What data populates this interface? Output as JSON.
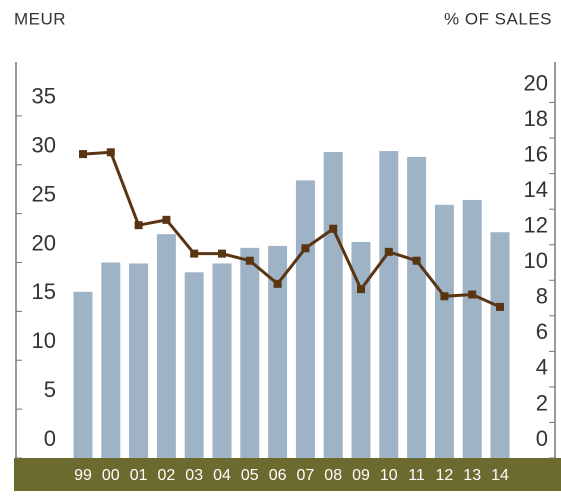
{
  "chart_data": {
    "type": "bar_line",
    "ylabel": "MEUR",
    "y2label": "% OF SALES",
    "categories": [
      "99",
      "00",
      "01",
      "02",
      "03",
      "04",
      "05",
      "06",
      "07",
      "08",
      "09",
      "10",
      "11",
      "12",
      "13",
      "14"
    ],
    "series": [
      {
        "type": "bar",
        "color": "#9fb3c6",
        "values": [
          17.0,
          20.0,
          19.9,
          22.9,
          19.0,
          19.9,
          21.5,
          21.7,
          28.4,
          31.3,
          22.1,
          31.4,
          30.8,
          25.9,
          26.4,
          23.1
        ]
      },
      {
        "type": "line",
        "axis": "y2",
        "color": "#5a3512",
        "values": [
          17.1,
          17.2,
          13.1,
          13.4,
          11.5,
          11.5,
          11.1,
          9.8,
          11.8,
          12.9,
          9.5,
          11.6,
          11.1,
          9.1,
          9.2,
          8.5
        ]
      }
    ],
    "ylim": [
      0,
      40
    ],
    "yticks": [
      0,
      5,
      10,
      15,
      20,
      25,
      30,
      35
    ],
    "y2lim": [
      0,
      22
    ],
    "y2ticks": [
      0,
      2,
      4,
      6,
      8,
      10,
      12,
      14,
      16,
      18,
      20
    ]
  }
}
